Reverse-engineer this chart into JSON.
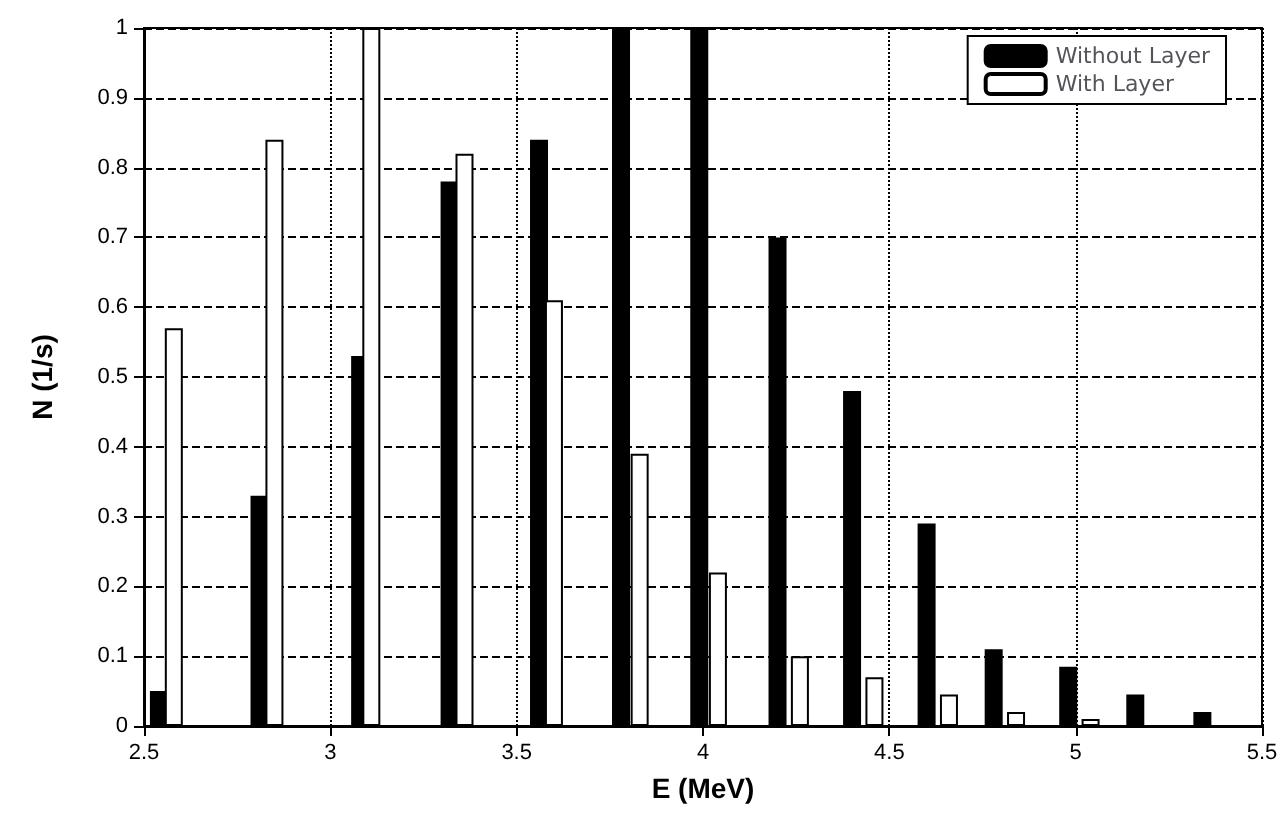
{
  "chart_data": {
    "type": "bar",
    "xlabel": "E (MeV)",
    "ylabel": "N (1/s)",
    "series": [
      {
        "name": "Without Layer",
        "color": "#000000",
        "x": [
          2.54,
          2.81,
          3.08,
          3.32,
          3.56,
          3.78,
          3.99,
          4.2,
          4.4,
          4.6,
          4.78,
          4.98,
          5.16,
          5.34
        ],
        "values": [
          0.05,
          0.33,
          0.53,
          0.78,
          0.84,
          1.0,
          1.0,
          0.7,
          0.48,
          0.29,
          0.11,
          0.085,
          0.045,
          0.02
        ]
      },
      {
        "name": "With Layer",
        "color": "#ffffff",
        "x": [
          2.58,
          2.85,
          3.11,
          3.36,
          3.6,
          3.83,
          4.04,
          4.26,
          4.46,
          4.66,
          4.84,
          5.04
        ],
        "values": [
          0.57,
          0.84,
          1.0,
          0.82,
          0.61,
          0.39,
          0.22,
          0.1,
          0.07,
          0.045,
          0.02,
          0.01
        ]
      }
    ],
    "xlim": [
      2.5,
      5.5
    ],
    "xticks": [
      2.5,
      3,
      3.5,
      4,
      4.5,
      5,
      5.5
    ],
    "ylim": [
      0,
      1
    ],
    "yticks": [
      0,
      0.1,
      0.2,
      0.3,
      0.4,
      0.5,
      0.6,
      0.7,
      0.8,
      0.9,
      1
    ],
    "grid": true,
    "legend": "top right"
  }
}
